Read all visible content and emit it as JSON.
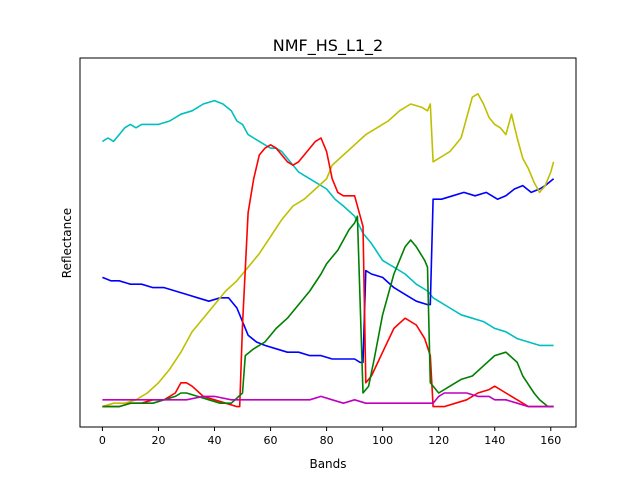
{
  "chart_data": {
    "type": "line",
    "title": "NMF_HS_L1_2",
    "xlabel": "Bands",
    "ylabel": "Reflectance",
    "xlim": [
      -8,
      169
    ],
    "ylim": [
      0,
      1
    ],
    "xticks": [
      0,
      20,
      40,
      60,
      80,
      100,
      120,
      140,
      160
    ],
    "grid": false,
    "series": [
      {
        "color": "#00bfbf",
        "points": [
          [
            0,
            0.79
          ],
          [
            2,
            0.8
          ],
          [
            4,
            0.79
          ],
          [
            6,
            0.81
          ],
          [
            8,
            0.83
          ],
          [
            10,
            0.84
          ],
          [
            12,
            0.83
          ],
          [
            14,
            0.84
          ],
          [
            16,
            0.84
          ],
          [
            20,
            0.84
          ],
          [
            24,
            0.85
          ],
          [
            28,
            0.87
          ],
          [
            32,
            0.88
          ],
          [
            36,
            0.9
          ],
          [
            40,
            0.91
          ],
          [
            43,
            0.9
          ],
          [
            46,
            0.88
          ],
          [
            48,
            0.85
          ],
          [
            50,
            0.84
          ],
          [
            52,
            0.81
          ],
          [
            54,
            0.8
          ],
          [
            56,
            0.79
          ],
          [
            58,
            0.78
          ],
          [
            60,
            0.77
          ],
          [
            62,
            0.77
          ],
          [
            64,
            0.76
          ],
          [
            66,
            0.74
          ],
          [
            68,
            0.72
          ],
          [
            70,
            0.7
          ],
          [
            72,
            0.69
          ],
          [
            76,
            0.67
          ],
          [
            80,
            0.65
          ],
          [
            83,
            0.62
          ],
          [
            86,
            0.6
          ],
          [
            90,
            0.57
          ],
          [
            93,
            0.52
          ],
          [
            96,
            0.49
          ],
          [
            100,
            0.44
          ],
          [
            104,
            0.42
          ],
          [
            108,
            0.4
          ],
          [
            112,
            0.37
          ],
          [
            116,
            0.35
          ],
          [
            118,
            0.33
          ],
          [
            120,
            0.32
          ],
          [
            124,
            0.3
          ],
          [
            128,
            0.28
          ],
          [
            132,
            0.27
          ],
          [
            136,
            0.26
          ],
          [
            140,
            0.24
          ],
          [
            144,
            0.23
          ],
          [
            148,
            0.21
          ],
          [
            152,
            0.2
          ],
          [
            156,
            0.19
          ],
          [
            160,
            0.19
          ],
          [
            161,
            0.19
          ]
        ]
      },
      {
        "color": "#0000ff",
        "points": [
          [
            0,
            0.39
          ],
          [
            3,
            0.38
          ],
          [
            6,
            0.38
          ],
          [
            10,
            0.37
          ],
          [
            14,
            0.37
          ],
          [
            18,
            0.36
          ],
          [
            22,
            0.36
          ],
          [
            26,
            0.35
          ],
          [
            30,
            0.34
          ],
          [
            34,
            0.33
          ],
          [
            38,
            0.32
          ],
          [
            42,
            0.33
          ],
          [
            45,
            0.33
          ],
          [
            48,
            0.3
          ],
          [
            50,
            0.26
          ],
          [
            52,
            0.22
          ],
          [
            55,
            0.2
          ],
          [
            58,
            0.19
          ],
          [
            62,
            0.18
          ],
          [
            66,
            0.17
          ],
          [
            70,
            0.17
          ],
          [
            74,
            0.16
          ],
          [
            78,
            0.16
          ],
          [
            82,
            0.15
          ],
          [
            86,
            0.15
          ],
          [
            90,
            0.15
          ],
          [
            92,
            0.14
          ],
          [
            93,
            0.14
          ],
          [
            94,
            0.41
          ],
          [
            96,
            0.4
          ],
          [
            100,
            0.39
          ],
          [
            104,
            0.36
          ],
          [
            108,
            0.34
          ],
          [
            112,
            0.32
          ],
          [
            116,
            0.31
          ],
          [
            117,
            0.31
          ],
          [
            118,
            0.62
          ],
          [
            121,
            0.62
          ],
          [
            125,
            0.63
          ],
          [
            129,
            0.64
          ],
          [
            133,
            0.63
          ],
          [
            137,
            0.64
          ],
          [
            141,
            0.62
          ],
          [
            144,
            0.63
          ],
          [
            147,
            0.65
          ],
          [
            150,
            0.66
          ],
          [
            153,
            0.64
          ],
          [
            156,
            0.65
          ],
          [
            158,
            0.66
          ],
          [
            161,
            0.68
          ]
        ]
      },
      {
        "color": "#bfbf00",
        "points": [
          [
            0,
            0.01
          ],
          [
            4,
            0.02
          ],
          [
            8,
            0.02
          ],
          [
            12,
            0.03
          ],
          [
            16,
            0.05
          ],
          [
            20,
            0.08
          ],
          [
            24,
            0.12
          ],
          [
            28,
            0.17
          ],
          [
            32,
            0.23
          ],
          [
            36,
            0.27
          ],
          [
            40,
            0.31
          ],
          [
            44,
            0.35
          ],
          [
            48,
            0.38
          ],
          [
            52,
            0.42
          ],
          [
            56,
            0.46
          ],
          [
            60,
            0.51
          ],
          [
            64,
            0.56
          ],
          [
            68,
            0.6
          ],
          [
            72,
            0.62
          ],
          [
            76,
            0.65
          ],
          [
            80,
            0.68
          ],
          [
            82,
            0.72
          ],
          [
            86,
            0.75
          ],
          [
            90,
            0.78
          ],
          [
            94,
            0.81
          ],
          [
            98,
            0.83
          ],
          [
            102,
            0.85
          ],
          [
            106,
            0.88
          ],
          [
            110,
            0.9
          ],
          [
            114,
            0.89
          ],
          [
            116,
            0.88
          ],
          [
            117,
            0.9
          ],
          [
            118,
            0.73
          ],
          [
            120,
            0.74
          ],
          [
            122,
            0.75
          ],
          [
            124,
            0.76
          ],
          [
            128,
            0.8
          ],
          [
            132,
            0.92
          ],
          [
            134,
            0.93
          ],
          [
            136,
            0.9
          ],
          [
            138,
            0.86
          ],
          [
            140,
            0.84
          ],
          [
            142,
            0.83
          ],
          [
            144,
            0.81
          ],
          [
            146,
            0.87
          ],
          [
            148,
            0.8
          ],
          [
            150,
            0.74
          ],
          [
            152,
            0.71
          ],
          [
            154,
            0.67
          ],
          [
            156,
            0.64
          ],
          [
            158,
            0.66
          ],
          [
            160,
            0.7
          ],
          [
            161,
            0.73
          ]
        ]
      },
      {
        "color": "#ff0000",
        "points": [
          [
            0,
            0.01
          ],
          [
            6,
            0.01
          ],
          [
            10,
            0.02
          ],
          [
            14,
            0.02
          ],
          [
            18,
            0.03
          ],
          [
            22,
            0.03
          ],
          [
            26,
            0.05
          ],
          [
            28,
            0.08
          ],
          [
            30,
            0.08
          ],
          [
            32,
            0.07
          ],
          [
            36,
            0.04
          ],
          [
            40,
            0.03
          ],
          [
            44,
            0.02
          ],
          [
            48,
            0.01
          ],
          [
            49,
            0.01
          ],
          [
            50,
            0.25
          ],
          [
            52,
            0.58
          ],
          [
            54,
            0.68
          ],
          [
            56,
            0.75
          ],
          [
            58,
            0.77
          ],
          [
            60,
            0.78
          ],
          [
            62,
            0.77
          ],
          [
            64,
            0.75
          ],
          [
            66,
            0.73
          ],
          [
            68,
            0.72
          ],
          [
            70,
            0.73
          ],
          [
            72,
            0.75
          ],
          [
            76,
            0.79
          ],
          [
            78,
            0.8
          ],
          [
            80,
            0.76
          ],
          [
            82,
            0.68
          ],
          [
            84,
            0.64
          ],
          [
            86,
            0.63
          ],
          [
            88,
            0.63
          ],
          [
            90,
            0.63
          ],
          [
            92,
            0.57
          ],
          [
            93,
            0.54
          ],
          [
            94,
            0.08
          ],
          [
            96,
            0.1
          ],
          [
            100,
            0.17
          ],
          [
            104,
            0.24
          ],
          [
            108,
            0.27
          ],
          [
            112,
            0.25
          ],
          [
            115,
            0.21
          ],
          [
            117,
            0.16
          ],
          [
            118,
            0.01
          ],
          [
            122,
            0.01
          ],
          [
            126,
            0.02
          ],
          [
            130,
            0.03
          ],
          [
            134,
            0.05
          ],
          [
            138,
            0.06
          ],
          [
            140,
            0.07
          ],
          [
            144,
            0.05
          ],
          [
            148,
            0.03
          ],
          [
            152,
            0.01
          ],
          [
            156,
            0.01
          ],
          [
            160,
            0.01
          ],
          [
            161,
            0.01
          ]
        ]
      },
      {
        "color": "#008000",
        "points": [
          [
            0,
            0.01
          ],
          [
            6,
            0.01
          ],
          [
            10,
            0.02
          ],
          [
            14,
            0.02
          ],
          [
            18,
            0.02
          ],
          [
            22,
            0.03
          ],
          [
            26,
            0.04
          ],
          [
            28,
            0.05
          ],
          [
            30,
            0.05
          ],
          [
            34,
            0.04
          ],
          [
            38,
            0.03
          ],
          [
            42,
            0.02
          ],
          [
            46,
            0.02
          ],
          [
            50,
            0.05
          ],
          [
            51,
            0.16
          ],
          [
            54,
            0.18
          ],
          [
            58,
            0.2
          ],
          [
            62,
            0.24
          ],
          [
            66,
            0.27
          ],
          [
            70,
            0.31
          ],
          [
            74,
            0.35
          ],
          [
            78,
            0.4
          ],
          [
            80,
            0.43
          ],
          [
            82,
            0.45
          ],
          [
            84,
            0.47
          ],
          [
            86,
            0.5
          ],
          [
            88,
            0.53
          ],
          [
            90,
            0.55
          ],
          [
            91,
            0.57
          ],
          [
            93,
            0.05
          ],
          [
            95,
            0.07
          ],
          [
            97,
            0.15
          ],
          [
            100,
            0.28
          ],
          [
            104,
            0.4
          ],
          [
            108,
            0.48
          ],
          [
            110,
            0.5
          ],
          [
            112,
            0.48
          ],
          [
            115,
            0.44
          ],
          [
            116,
            0.42
          ],
          [
            117,
            0.08
          ],
          [
            120,
            0.05
          ],
          [
            124,
            0.07
          ],
          [
            128,
            0.09
          ],
          [
            132,
            0.1
          ],
          [
            136,
            0.13
          ],
          [
            140,
            0.16
          ],
          [
            144,
            0.17
          ],
          [
            148,
            0.14
          ],
          [
            150,
            0.1
          ],
          [
            154,
            0.05
          ],
          [
            156,
            0.03
          ],
          [
            159,
            0.01
          ],
          [
            161,
            0.01
          ]
        ]
      },
      {
        "color": "#bf00bf",
        "points": [
          [
            0,
            0.03
          ],
          [
            6,
            0.03
          ],
          [
            10,
            0.03
          ],
          [
            14,
            0.03
          ],
          [
            20,
            0.03
          ],
          [
            26,
            0.03
          ],
          [
            30,
            0.03
          ],
          [
            36,
            0.04
          ],
          [
            40,
            0.04
          ],
          [
            46,
            0.03
          ],
          [
            50,
            0.03
          ],
          [
            54,
            0.03
          ],
          [
            58,
            0.03
          ],
          [
            62,
            0.03
          ],
          [
            66,
            0.03
          ],
          [
            70,
            0.03
          ],
          [
            74,
            0.03
          ],
          [
            78,
            0.04
          ],
          [
            82,
            0.03
          ],
          [
            86,
            0.02
          ],
          [
            90,
            0.03
          ],
          [
            94,
            0.02
          ],
          [
            98,
            0.02
          ],
          [
            102,
            0.02
          ],
          [
            106,
            0.02
          ],
          [
            110,
            0.02
          ],
          [
            114,
            0.02
          ],
          [
            118,
            0.02
          ],
          [
            120,
            0.04
          ],
          [
            122,
            0.05
          ],
          [
            126,
            0.05
          ],
          [
            130,
            0.05
          ],
          [
            134,
            0.04
          ],
          [
            138,
            0.04
          ],
          [
            140,
            0.03
          ],
          [
            144,
            0.03
          ],
          [
            148,
            0.02
          ],
          [
            152,
            0.01
          ],
          [
            156,
            0.01
          ],
          [
            160,
            0.01
          ],
          [
            161,
            0.01
          ]
        ]
      }
    ]
  }
}
